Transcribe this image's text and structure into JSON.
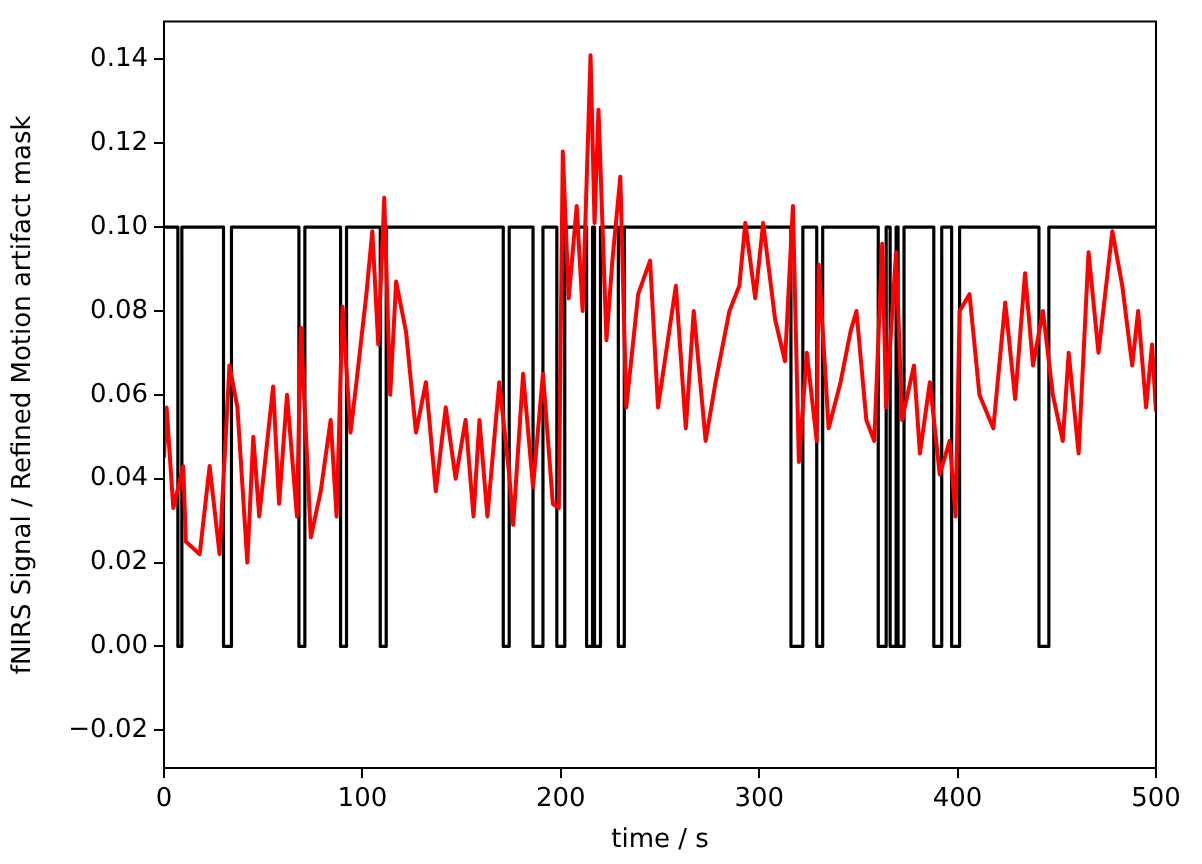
{
  "chart_data": {
    "type": "line",
    "xlabel": "time / s",
    "ylabel": "fNIRS Signal / Refined Motion artifact mask",
    "xlim": [
      0,
      500
    ],
    "ylim": [
      -0.029,
      0.149
    ],
    "xticks": [
      0,
      100,
      200,
      300,
      400,
      500
    ],
    "yticks": [
      {
        "value": -0.02,
        "label": "−0.02"
      },
      {
        "value": 0,
        "label": "0.00"
      },
      {
        "value": 0.02,
        "label": "0.02"
      },
      {
        "value": 0.04,
        "label": "0.04"
      },
      {
        "value": 0.06,
        "label": "0.06"
      },
      {
        "value": 0.08,
        "label": "0.08"
      },
      {
        "value": 0.1,
        "label": "0.10"
      },
      {
        "value": 0.12,
        "label": "0.12"
      },
      {
        "value": 0.14,
        "label": "0.14"
      }
    ],
    "grid": false,
    "legend": false,
    "marker": "none",
    "line_style": "solid",
    "series": [
      {
        "color": "#ff0000",
        "x": [
          0,
          1.3,
          4.7,
          9.7,
          11,
          18,
          23,
          28,
          33,
          37,
          42,
          45,
          48,
          55,
          58,
          62,
          67,
          69,
          74,
          79,
          84,
          87,
          90,
          94,
          97,
          102,
          105,
          108,
          111,
          114,
          117,
          122,
          127,
          132,
          137,
          142,
          147,
          152,
          156,
          159,
          163,
          169,
          174,
          176,
          181,
          186,
          191,
          196,
          199,
          201,
          204,
          208,
          211,
          215,
          217,
          219,
          223,
          226,
          230,
          233,
          239,
          245,
          249,
          258,
          263,
          267,
          273,
          278,
          285,
          290,
          293,
          298,
          302,
          308,
          313,
          317,
          320,
          324,
          329,
          330,
          335,
          341,
          346,
          349,
          354,
          358,
          362,
          364,
          369,
          372,
          378,
          381,
          386,
          391,
          396,
          399,
          401,
          406,
          411,
          418,
          424,
          429,
          434,
          438,
          443,
          448,
          453,
          456,
          461,
          466,
          471,
          478,
          483,
          488,
          491,
          495,
          498,
          500
        ],
        "values": [
          0.045,
          0.057,
          0.033,
          0.043,
          0.025,
          0.022,
          0.043,
          0.022,
          0.067,
          0.057,
          0.02,
          0.05,
          0.031,
          0.062,
          0.034,
          0.06,
          0.031,
          0.076,
          0.026,
          0.037,
          0.054,
          0.031,
          0.081,
          0.051,
          0.063,
          0.084,
          0.099,
          0.072,
          0.107,
          0.06,
          0.087,
          0.075,
          0.051,
          0.063,
          0.037,
          0.057,
          0.04,
          0.054,
          0.031,
          0.054,
          0.031,
          0.063,
          0.041,
          0.029,
          0.065,
          0.038,
          0.065,
          0.034,
          0.033,
          0.118,
          0.083,
          0.105,
          0.08,
          0.141,
          0.101,
          0.128,
          0.073,
          0.092,
          0.112,
          0.057,
          0.084,
          0.092,
          0.057,
          0.086,
          0.052,
          0.08,
          0.049,
          0.063,
          0.08,
          0.086,
          0.101,
          0.083,
          0.101,
          0.078,
          0.068,
          0.105,
          0.044,
          0.07,
          0.049,
          0.091,
          0.052,
          0.063,
          0.075,
          0.08,
          0.054,
          0.049,
          0.096,
          0.057,
          0.094,
          0.054,
          0.067,
          0.046,
          0.063,
          0.041,
          0.049,
          0.031,
          0.08,
          0.084,
          0.06,
          0.052,
          0.082,
          0.059,
          0.089,
          0.067,
          0.08,
          0.06,
          0.049,
          0.07,
          0.046,
          0.094,
          0.07,
          0.099,
          0.086,
          0.067,
          0.08,
          0.057,
          0.072,
          0.056
        ]
      },
      {
        "type": "step",
        "color": "#000000",
        "x": [
          0,
          7,
          9,
          30,
          34,
          68,
          71,
          89,
          92,
          109,
          112,
          171,
          174,
          186,
          191,
          198,
          202,
          213,
          216,
          217,
          220,
          229,
          232,
          316,
          322,
          329,
          332,
          360,
          364,
          366,
          369,
          370,
          373,
          388,
          392,
          397,
          401,
          441,
          446,
          500
        ],
        "values": [
          0.1,
          0,
          0.1,
          0,
          0.1,
          0,
          0.1,
          0,
          0.1,
          0,
          0.1,
          0,
          0.1,
          0,
          0.1,
          0,
          0.1,
          0,
          0.1,
          0,
          0.1,
          0,
          0.1,
          0,
          0.1,
          0,
          0.1,
          0,
          0.1,
          0,
          0.1,
          0,
          0.1,
          0,
          0.1,
          0,
          0.1,
          0,
          0.1,
          0.1
        ]
      }
    ]
  }
}
